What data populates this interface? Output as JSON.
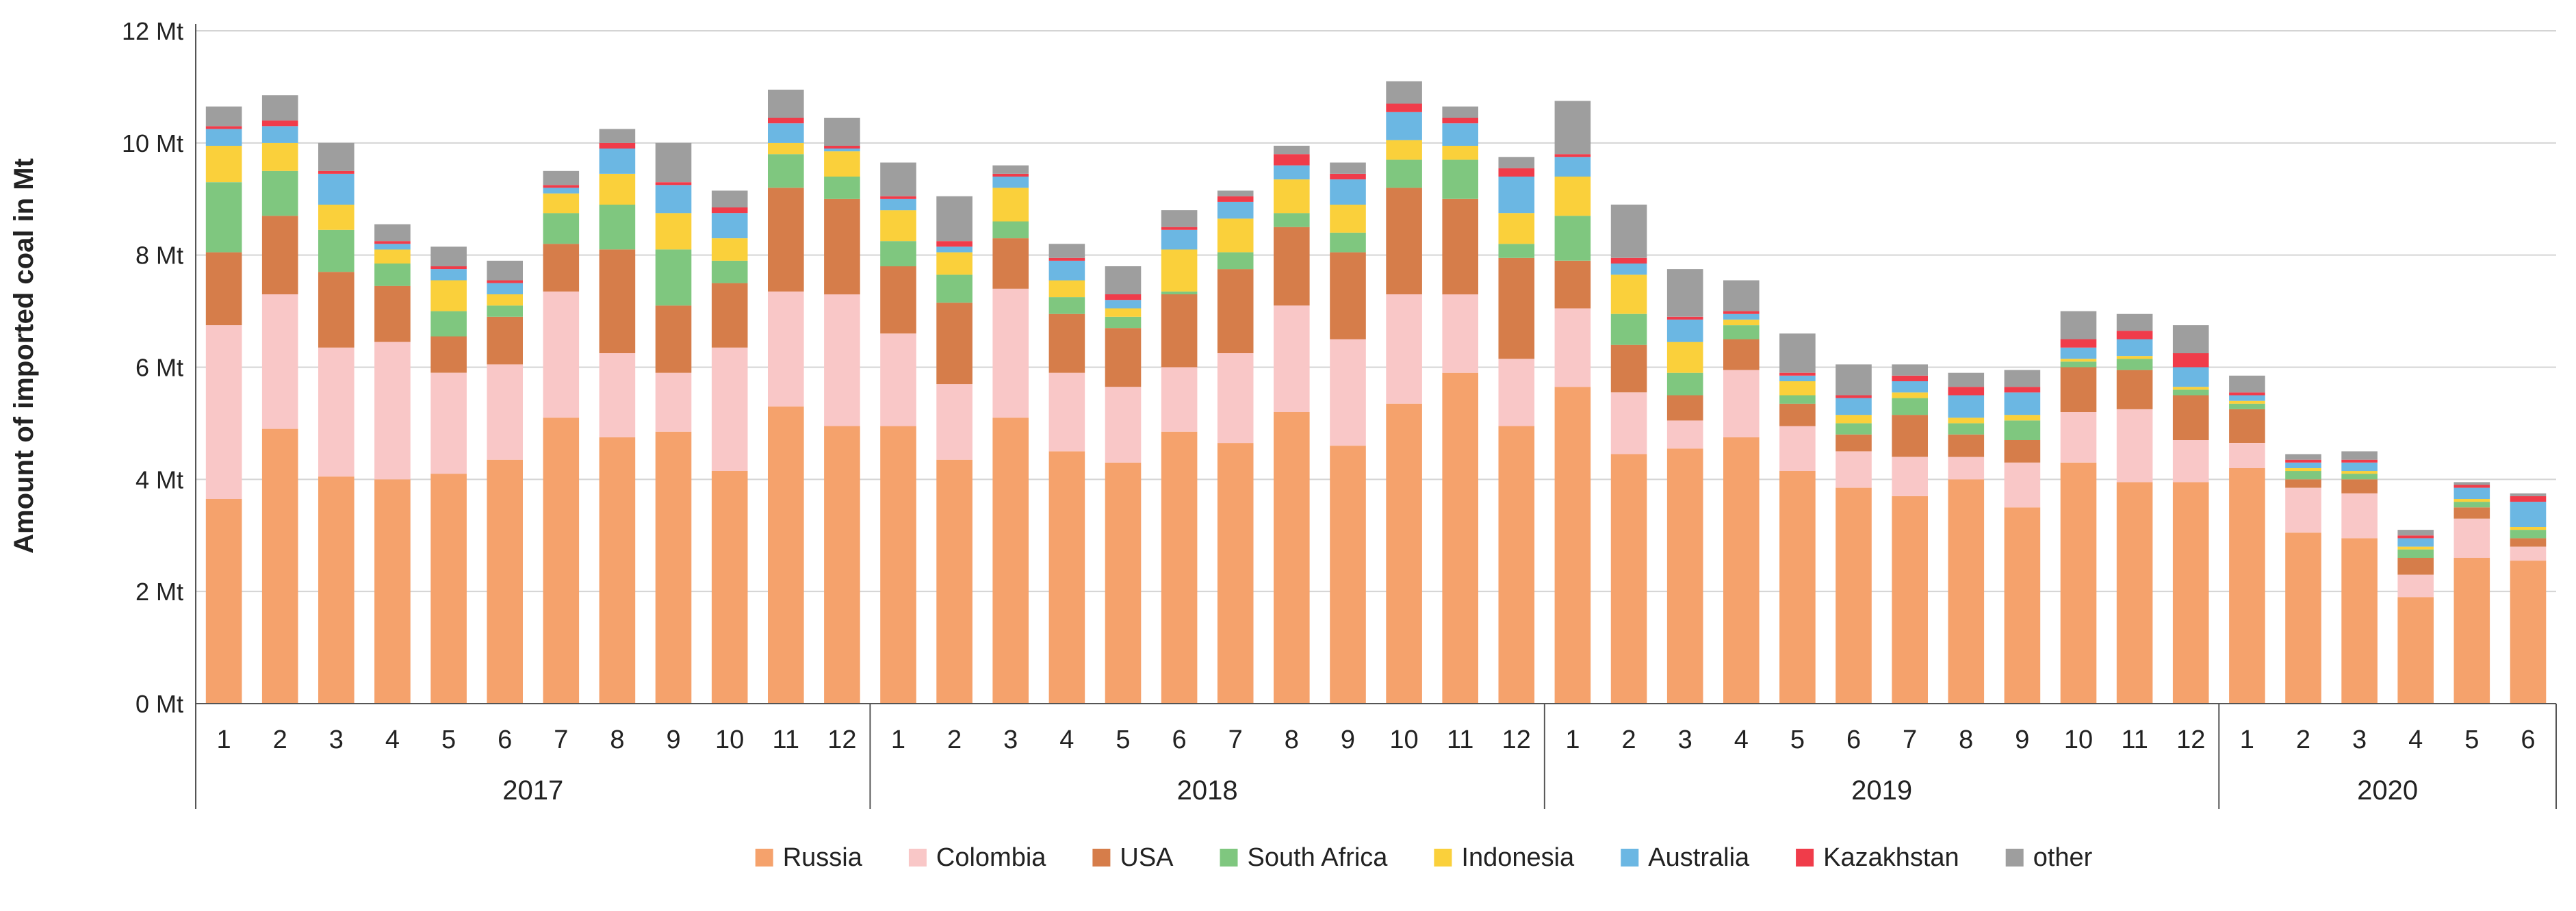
{
  "chart_data": {
    "type": "bar",
    "stacked": true,
    "title": "",
    "xlabel": "",
    "ylabel": "Amount of imported coal in Mt",
    "ylim": [
      0,
      12
    ],
    "yticks": [
      {
        "value": 0,
        "label": "0 Mt"
      },
      {
        "value": 2,
        "label": "2 Mt"
      },
      {
        "value": 4,
        "label": "4 Mt"
      },
      {
        "value": 6,
        "label": "6 Mt"
      },
      {
        "value": 8,
        "label": "8 Mt"
      },
      {
        "value": 10,
        "label": "10 Mt"
      },
      {
        "value": 12,
        "label": "12 Mt"
      }
    ],
    "grid": true,
    "legend_position": "bottom",
    "categories": [
      "1",
      "2",
      "3",
      "4",
      "5",
      "6",
      "7",
      "8",
      "9",
      "10",
      "11",
      "12",
      "1",
      "2",
      "3",
      "4",
      "5",
      "6",
      "7",
      "8",
      "9",
      "10",
      "11",
      "12",
      "1",
      "2",
      "3",
      "4",
      "5",
      "6",
      "7",
      "8",
      "9",
      "10",
      "11",
      "12",
      "1",
      "2",
      "3",
      "4",
      "5",
      "6"
    ],
    "groups": [
      {
        "label": "2017",
        "count": 12
      },
      {
        "label": "2018",
        "count": 12
      },
      {
        "label": "2019",
        "count": 12
      },
      {
        "label": "2020",
        "count": 6
      }
    ],
    "series": [
      {
        "name": "Russia",
        "color": "#F5A26C",
        "values": [
          3.65,
          4.9,
          4.05,
          4.0,
          4.1,
          4.35,
          5.1,
          4.75,
          4.85,
          4.15,
          5.3,
          4.95,
          4.95,
          4.35,
          5.1,
          4.5,
          4.3,
          4.85,
          4.65,
          5.2,
          4.6,
          5.35,
          5.9,
          4.95,
          5.65,
          4.45,
          4.55,
          4.75,
          4.15,
          3.85,
          3.7,
          4.0,
          3.5,
          4.3,
          3.95,
          3.95,
          4.2,
          3.05,
          2.95,
          1.9,
          2.6,
          2.55
        ]
      },
      {
        "name": "Colombia",
        "color": "#F9C7C7",
        "values": [
          3.1,
          2.4,
          2.3,
          2.45,
          1.8,
          1.7,
          2.25,
          1.5,
          1.05,
          2.2,
          2.05,
          2.35,
          1.65,
          1.35,
          2.3,
          1.4,
          1.35,
          1.15,
          1.6,
          1.9,
          1.9,
          1.95,
          1.4,
          1.2,
          1.4,
          1.1,
          0.5,
          1.2,
          0.8,
          0.65,
          0.7,
          0.4,
          0.8,
          0.9,
          1.3,
          0.75,
          0.45,
          0.8,
          0.8,
          0.4,
          0.7,
          0.25
        ]
      },
      {
        "name": "USA",
        "color": "#D67D4A",
        "values": [
          1.3,
          1.4,
          1.35,
          1.0,
          0.65,
          0.85,
          0.85,
          1.85,
          1.2,
          1.15,
          1.85,
          1.7,
          1.2,
          1.45,
          0.9,
          1.05,
          1.05,
          1.3,
          1.5,
          1.4,
          1.55,
          1.9,
          1.7,
          1.8,
          0.85,
          0.85,
          0.45,
          0.55,
          0.4,
          0.3,
          0.75,
          0.4,
          0.4,
          0.8,
          0.7,
          0.8,
          0.6,
          0.15,
          0.25,
          0.3,
          0.2,
          0.15
        ]
      },
      {
        "name": "South Africa",
        "color": "#7FC77F",
        "values": [
          1.25,
          0.8,
          0.75,
          0.4,
          0.45,
          0.2,
          0.55,
          0.8,
          1.0,
          0.4,
          0.6,
          0.4,
          0.45,
          0.5,
          0.3,
          0.3,
          0.2,
          0.05,
          0.3,
          0.25,
          0.35,
          0.5,
          0.7,
          0.25,
          0.8,
          0.55,
          0.4,
          0.25,
          0.15,
          0.2,
          0.3,
          0.2,
          0.35,
          0.1,
          0.2,
          0.1,
          0.1,
          0.15,
          0.1,
          0.15,
          0.1,
          0.15
        ]
      },
      {
        "name": "Indonesia",
        "color": "#FAD03B",
        "values": [
          0.65,
          0.5,
          0.45,
          0.25,
          0.55,
          0.2,
          0.35,
          0.55,
          0.65,
          0.4,
          0.2,
          0.45,
          0.55,
          0.4,
          0.6,
          0.3,
          0.15,
          0.75,
          0.6,
          0.6,
          0.5,
          0.35,
          0.25,
          0.55,
          0.7,
          0.7,
          0.55,
          0.1,
          0.25,
          0.15,
          0.1,
          0.1,
          0.1,
          0.05,
          0.05,
          0.05,
          0.05,
          0.05,
          0.05,
          0.05,
          0.05,
          0.05
        ]
      },
      {
        "name": "Australia",
        "color": "#6BB7E3",
        "values": [
          0.3,
          0.3,
          0.55,
          0.1,
          0.2,
          0.2,
          0.1,
          0.45,
          0.5,
          0.45,
          0.35,
          0.05,
          0.2,
          0.1,
          0.2,
          0.35,
          0.15,
          0.35,
          0.3,
          0.25,
          0.45,
          0.5,
          0.4,
          0.65,
          0.35,
          0.2,
          0.4,
          0.1,
          0.1,
          0.3,
          0.2,
          0.4,
          0.4,
          0.2,
          0.3,
          0.35,
          0.1,
          0.1,
          0.15,
          0.15,
          0.2,
          0.45
        ]
      },
      {
        "name": "Kazakhstan",
        "color": "#F03C4A",
        "values": [
          0.05,
          0.1,
          0.05,
          0.05,
          0.05,
          0.05,
          0.05,
          0.1,
          0.05,
          0.1,
          0.1,
          0.05,
          0.05,
          0.1,
          0.05,
          0.05,
          0.1,
          0.05,
          0.1,
          0.2,
          0.1,
          0.15,
          0.1,
          0.15,
          0.05,
          0.1,
          0.05,
          0.05,
          0.05,
          0.05,
          0.1,
          0.15,
          0.1,
          0.15,
          0.15,
          0.25,
          0.05,
          0.05,
          0.05,
          0.05,
          0.05,
          0.1
        ]
      },
      {
        "name": "other",
        "color": "#9E9E9E",
        "values": [
          0.35,
          0.45,
          0.5,
          0.3,
          0.35,
          0.35,
          0.25,
          0.25,
          0.7,
          0.3,
          0.5,
          0.5,
          0.6,
          0.8,
          0.15,
          0.25,
          0.5,
          0.3,
          0.1,
          0.15,
          0.2,
          0.4,
          0.2,
          0.2,
          0.95,
          0.95,
          0.85,
          0.55,
          0.7,
          0.55,
          0.2,
          0.25,
          0.3,
          0.5,
          0.3,
          0.5,
          0.3,
          0.1,
          0.15,
          0.1,
          0.05,
          0.05
        ]
      }
    ]
  }
}
